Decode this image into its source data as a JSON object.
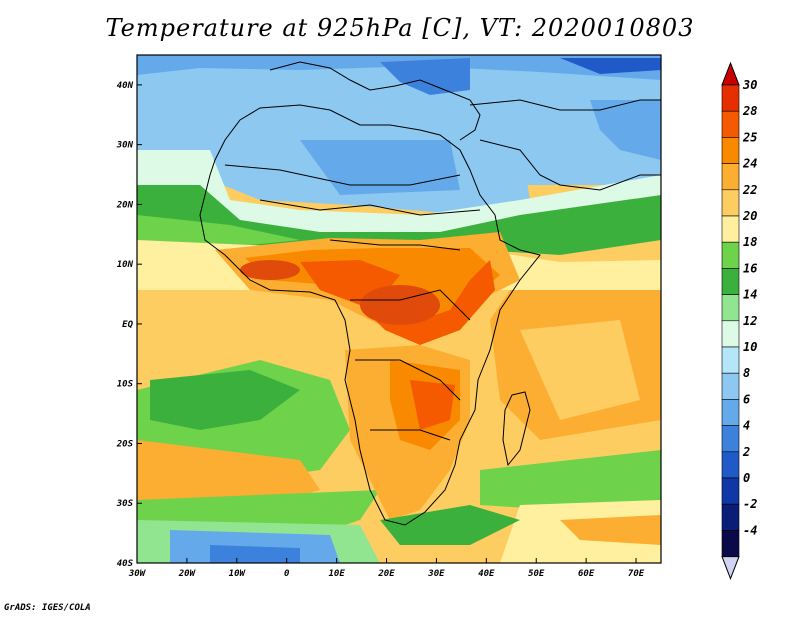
{
  "title": "Temperature at 925hPa [C], VT: 2020010803",
  "credit": "GrADS: IGES/COLA",
  "map": {
    "lon_range": [
      -30,
      75
    ],
    "lat_range": [
      -40,
      45
    ],
    "lat_labels": [
      "40N",
      "30N",
      "20N",
      "10N",
      "EQ",
      "10S",
      "20S",
      "30S",
      "40S"
    ],
    "lon_labels": [
      "30W",
      "20W",
      "10W",
      "0",
      "10E",
      "20E",
      "30E",
      "40E",
      "50E",
      "60E",
      "70E"
    ]
  },
  "colorbar": {
    "labels": [
      "30",
      "28",
      "25",
      "24",
      "22",
      "20",
      "18",
      "16",
      "14",
      "12",
      "10",
      "8",
      "6",
      "4",
      "2",
      "0",
      "-2",
      "-4"
    ],
    "colors": [
      "#e62f00",
      "#f55a00",
      "#f98a00",
      "#fbae32",
      "#fdcd62",
      "#fff0a0",
      "#6ed24b",
      "#3cb03c",
      "#91e591",
      "#dcfae6",
      "#b4e6fa",
      "#8cc8f0",
      "#64aaeb",
      "#3c82dc",
      "#1f5ac8",
      "#0f37a5",
      "#0a1e78",
      "#0a0a4b"
    ],
    "over_color": "#c80000",
    "under_color": "#d2d2f5"
  }
}
